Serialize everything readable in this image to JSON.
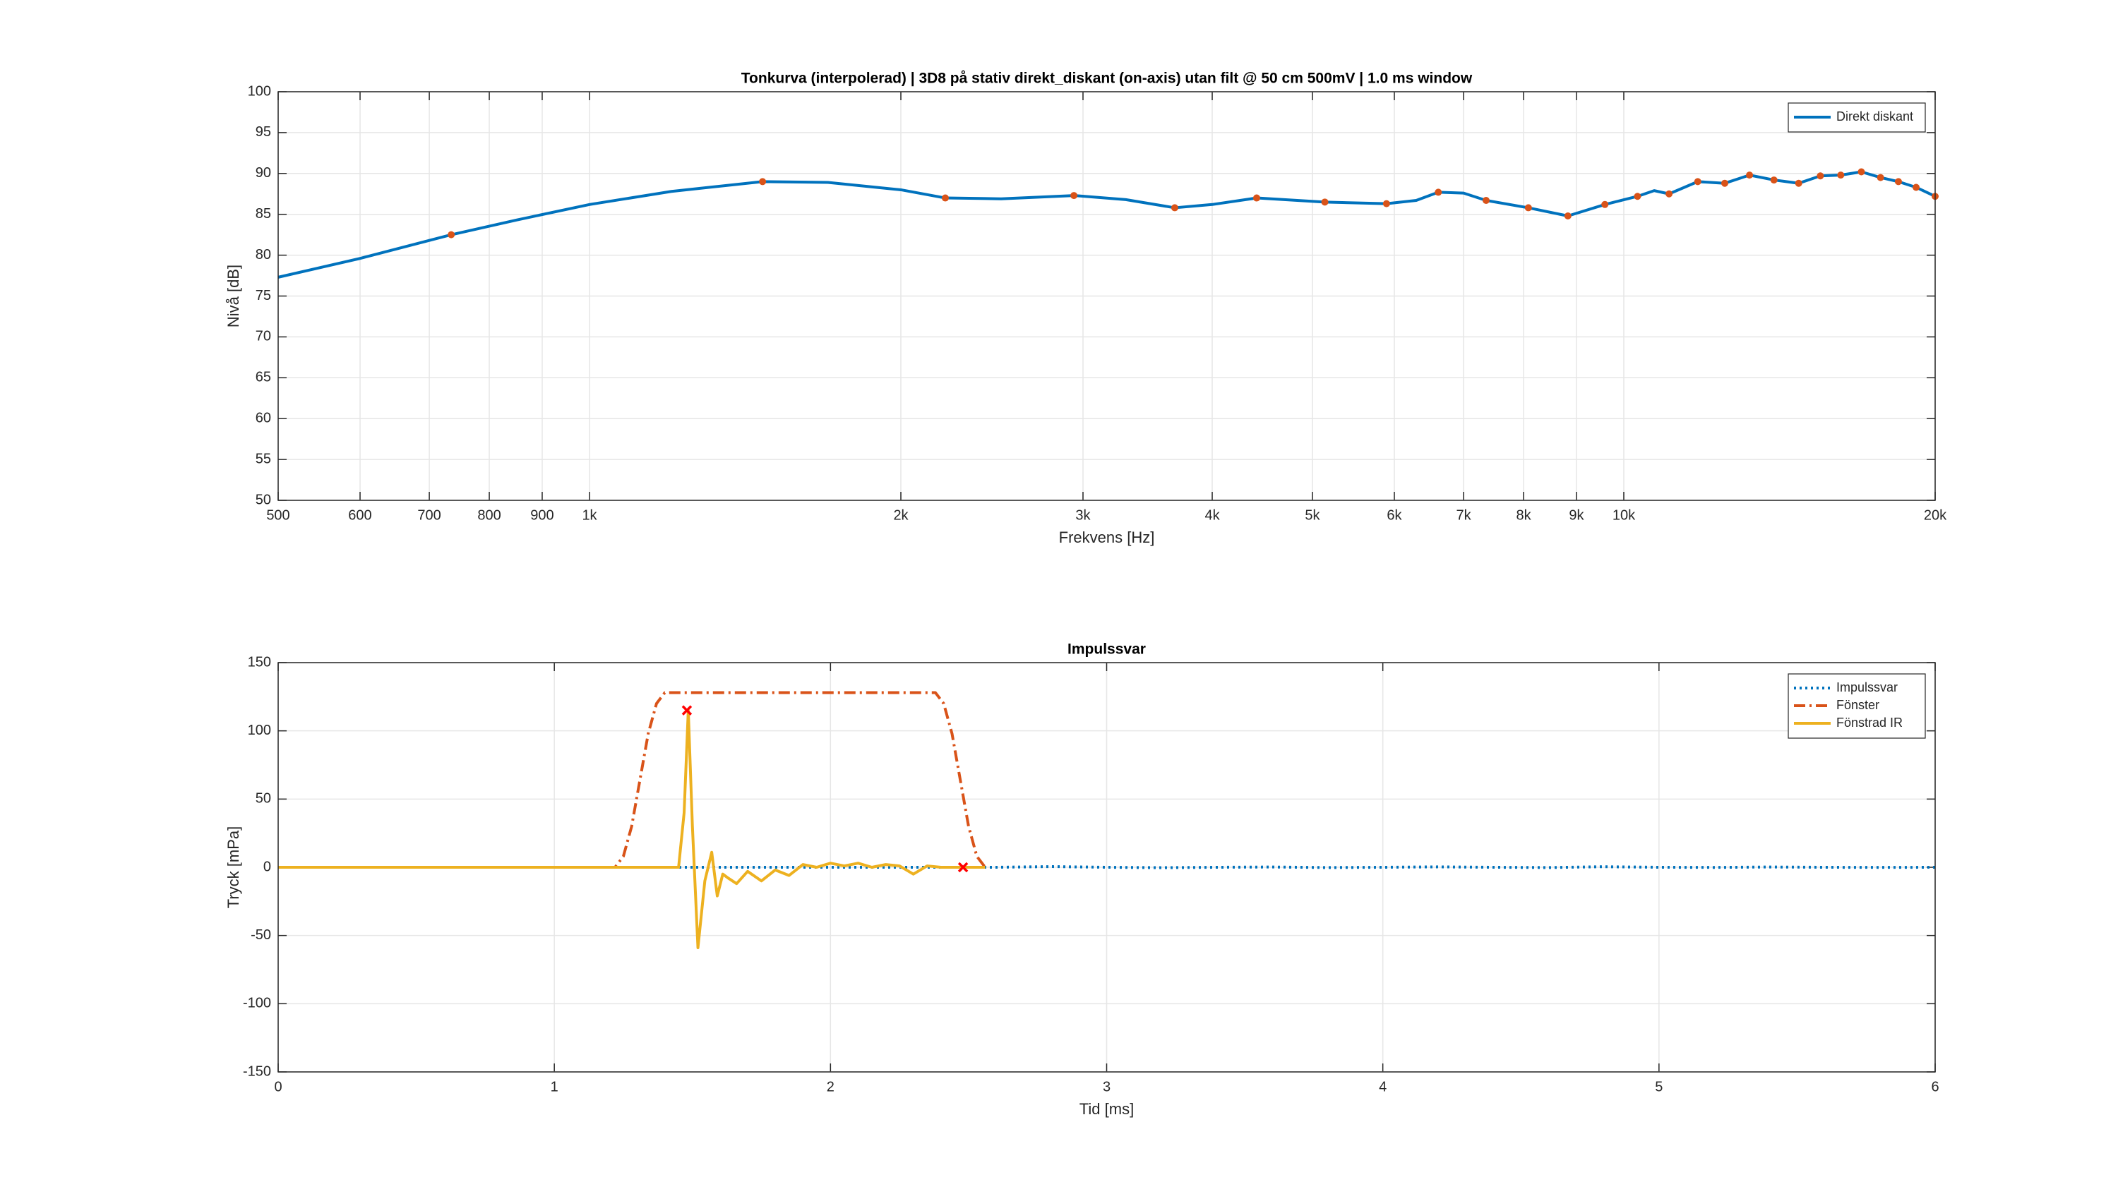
{
  "chart_data": [
    {
      "type": "line",
      "title": "Tonkurva (interpolerad) | 3D8 på stativ direkt_diskant (on-axis) utan filt @ 50 cm 500mV | 1.0 ms window",
      "x_label": "Frekvens [Hz]",
      "y_label": "Nivå [dB]",
      "x_scale": "log",
      "grid": true,
      "legend": "northeast",
      "xlim": [
        500,
        20000
      ],
      "ylim": [
        50,
        100
      ],
      "xticks": [
        500,
        600,
        700,
        800,
        900,
        {
          "value": 1000,
          "label": "1k"
        },
        {
          "value": 2000,
          "label": "2k"
        },
        {
          "value": 3000,
          "label": "3k"
        },
        {
          "value": 4000,
          "label": "4k"
        },
        {
          "value": 5000,
          "label": "5k"
        },
        {
          "value": 6000,
          "label": "6k"
        },
        {
          "value": 7000,
          "label": "7k"
        },
        {
          "value": 8000,
          "label": "8k"
        },
        {
          "value": 9000,
          "label": "9k"
        },
        {
          "value": 10000,
          "label": "10k"
        },
        {
          "value": 20000,
          "label": "20k"
        }
      ],
      "yticks": [
        50,
        55,
        60,
        65,
        70,
        75,
        80,
        85,
        90,
        95,
        100
      ],
      "series": [
        {
          "name": "Direkt diskant",
          "color": "#0072BD",
          "line_style": "solid",
          "x": [
            500,
            600,
            735,
            850,
            1000,
            1200,
            1470,
            1700,
            2000,
            2208,
            2500,
            2940,
            3300,
            3680,
            4000,
            4416,
            5140,
            5896,
            6300,
            6617,
            7000,
            7360,
            8086,
            8830,
            9588,
            10310,
            10700,
            11060,
            11790,
            12520,
            13230,
            13970,
            14760,
            15490,
            16210,
            16970,
            17710,
            18430,
            19170,
            20000
          ],
          "values": [
            77.3,
            79.6,
            82.5,
            84.3,
            86.2,
            87.8,
            89.0,
            88.9,
            88.0,
            87.0,
            86.9,
            87.3,
            86.8,
            85.8,
            86.2,
            87.0,
            86.5,
            86.3,
            86.7,
            87.7,
            87.6,
            86.7,
            85.8,
            84.8,
            86.2,
            87.2,
            87.9,
            87.5,
            89.0,
            88.8,
            89.8,
            89.2,
            88.8,
            89.7,
            89.8,
            90.2,
            89.5,
            89.0,
            88.3,
            87.2
          ]
        },
        {
          "color": "#D95319",
          "marker": "o",
          "x": [
            735,
            1470,
            2208,
            2940,
            3680,
            4416,
            5140,
            5896,
            6617,
            7360,
            8086,
            8830,
            9588,
            10310,
            11060,
            11790,
            12520,
            13230,
            13970,
            14760,
            15490,
            16210,
            16970,
            17710,
            18430,
            19170,
            20000
          ],
          "values": [
            82.5,
            89.0,
            87.0,
            87.3,
            85.8,
            87.0,
            86.5,
            86.3,
            87.7,
            86.7,
            85.8,
            84.8,
            86.2,
            87.2,
            87.5,
            89.0,
            88.8,
            89.8,
            89.2,
            88.8,
            89.7,
            89.8,
            90.2,
            89.5,
            89.0,
            88.3,
            87.2
          ]
        }
      ]
    },
    {
      "type": "line",
      "title": "Impulssvar",
      "x_label": "Tid [ms]",
      "y_label": "Tryck [mPa]",
      "grid": true,
      "legend": "northeast",
      "xlim": [
        0,
        6
      ],
      "ylim": [
        -150,
        150
      ],
      "xticks": [
        0,
        1,
        2,
        3,
        4,
        5,
        6
      ],
      "yticks": [
        -150,
        -100,
        -50,
        0,
        50,
        100,
        150
      ],
      "series": [
        {
          "name": "Impulssvar",
          "color": "#0072BD",
          "line_style": "dotted",
          "x": [
            0,
            1.2,
            2.6,
            2.8,
            3.0,
            3.2,
            3.4,
            3.6,
            3.8,
            4.0,
            4.2,
            4.4,
            4.6,
            4.8,
            5.0,
            5.2,
            5.4,
            5.6,
            5.8,
            6.0
          ],
          "values": [
            0,
            0,
            0,
            0.5,
            0,
            -0.3,
            0,
            0.2,
            -0.2,
            0,
            0.3,
            0,
            -0.2,
            0.4,
            0,
            -0.1,
            0.2,
            0,
            -0.1,
            0
          ]
        },
        {
          "name": "Fönster",
          "color": "#D95319",
          "line_style": "dashdot",
          "x": [
            0,
            1.22,
            1.25,
            1.28,
            1.31,
            1.34,
            1.37,
            1.4,
            2.38,
            2.41,
            2.44,
            2.47,
            2.5,
            2.53,
            2.56
          ],
          "values": [
            0,
            0,
            8,
            30,
            64,
            98,
            120,
            128,
            128,
            120,
            98,
            64,
            30,
            8,
            0
          ]
        },
        {
          "name": "Fönstrad IR",
          "color": "#EDB120",
          "line_style": "solid",
          "x": [
            0,
            1.22,
            1.45,
            1.47,
            1.485,
            1.5,
            1.52,
            1.545,
            1.57,
            1.59,
            1.61,
            1.63,
            1.66,
            1.7,
            1.75,
            1.8,
            1.85,
            1.9,
            1.95,
            2.0,
            2.05,
            2.1,
            2.15,
            2.2,
            2.25,
            2.3,
            2.35,
            2.4,
            2.48,
            2.56
          ],
          "values": [
            0,
            0,
            0,
            40,
            115,
            30,
            -59,
            -10,
            11,
            -21,
            -5,
            -8,
            -12,
            -3,
            -10,
            -2,
            -6,
            2,
            0,
            3,
            1,
            3,
            0,
            2,
            1,
            -5,
            1,
            0,
            0,
            0
          ]
        },
        {
          "color": "#FF0000",
          "marker": "x",
          "x": [
            1.48,
            2.48
          ],
          "values": [
            115,
            0
          ]
        }
      ]
    }
  ]
}
